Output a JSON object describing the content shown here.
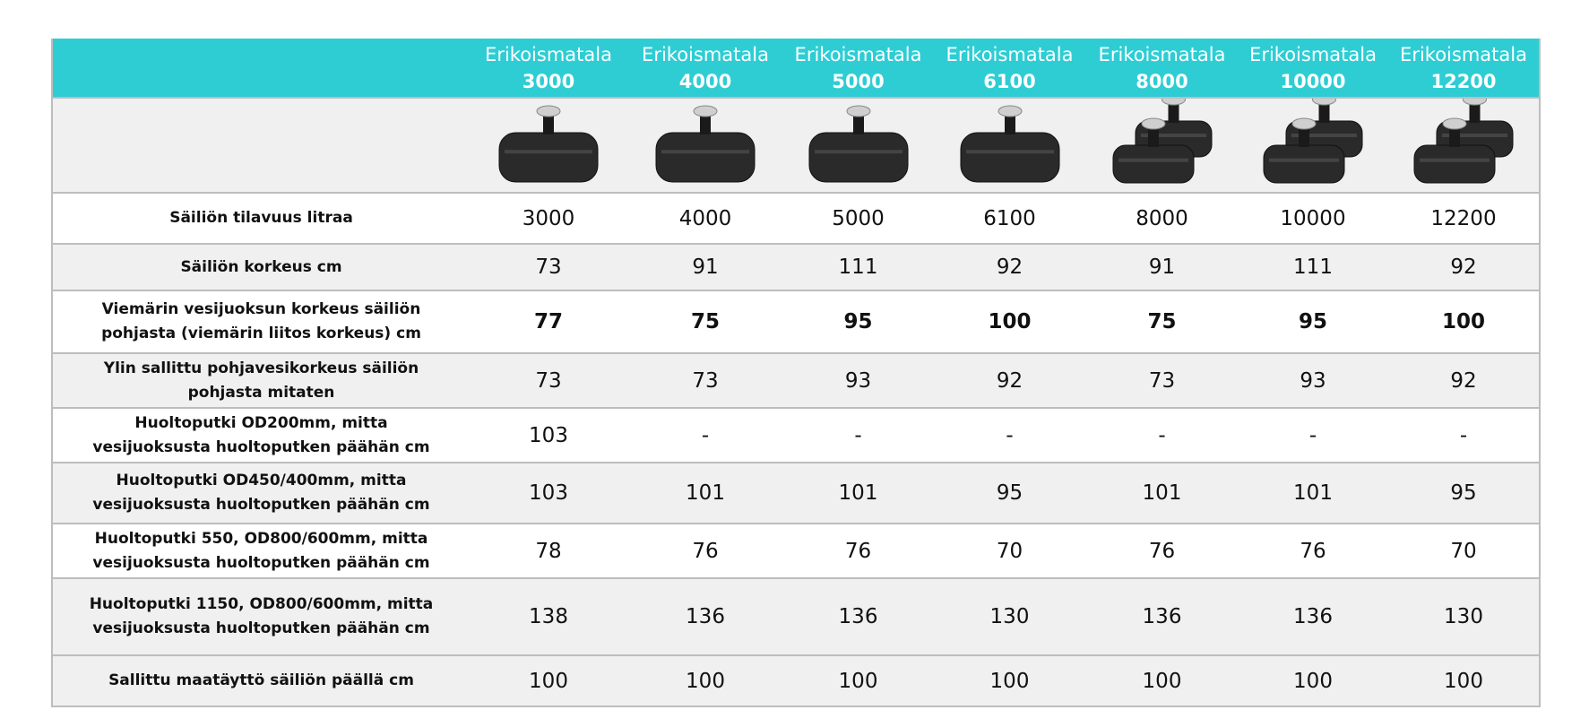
{
  "table": {
    "columns": [
      {
        "name": "Erikoismatala",
        "model": "3000"
      },
      {
        "name": "Erikoismatala",
        "model": "4000"
      },
      {
        "name": "Erikoismatala",
        "model": "5000"
      },
      {
        "name": "Erikoismatala",
        "model": "6100"
      },
      {
        "name": "Erikoismatala",
        "model": "8000"
      },
      {
        "name": "Erikoismatala",
        "model": "10000"
      },
      {
        "name": "Erikoismatala",
        "model": "12200"
      }
    ],
    "rows": [
      {
        "label": "Säiliön tilavuus litraa",
        "values": [
          3000,
          4000,
          5000,
          6100,
          8000,
          10000,
          12200
        ]
      },
      {
        "label": "Säiliön korkeus cm",
        "values": [
          73,
          91,
          111,
          92,
          91,
          111,
          92
        ]
      },
      {
        "label": "Viemärin vesijuoksun korkeus säiliön pohjasta (viemärin liitos korkeus) cm",
        "values": [
          77,
          75,
          95,
          100,
          75,
          95,
          100
        ]
      },
      {
        "label": "Ylin sallittu pohjavesikorkeus säiliön pohjasta mitaten",
        "values": [
          73,
          73,
          93,
          92,
          73,
          93,
          92
        ]
      },
      {
        "label": "Huoltoputki OD200mm, mitta vesijuoksusta huoltoputken päähän cm",
        "values": [
          103,
          "-",
          "-",
          "-",
          "-",
          "-",
          "-"
        ]
      },
      {
        "label": "Huoltoputki OD450/400mm, mitta vesijuoksusta huoltoputken päähän cm",
        "values": [
          103,
          101,
          101,
          95,
          101,
          101,
          95
        ]
      },
      {
        "label": "Huoltoputki 550, OD800/600mm, mitta vesijuoksusta huoltoputken päähän cm",
        "values": [
          78,
          76,
          76,
          70,
          76,
          76,
          70
        ]
      },
      {
        "label": "Huoltoputki 1150, OD800/600mm, mitta vesijuoksusta huoltoputken päähän cm",
        "values": [
          138,
          136,
          136,
          130,
          136,
          136,
          130
        ]
      },
      {
        "label": "Sallittu maatäyttö säiliön päällä cm",
        "values": [
          100,
          100,
          100,
          100,
          100,
          100,
          100
        ]
      }
    ]
  }
}
